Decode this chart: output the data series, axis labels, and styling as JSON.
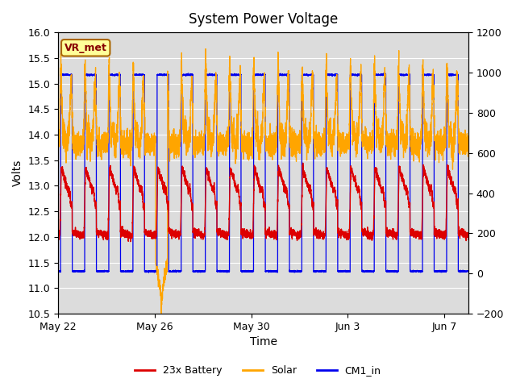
{
  "title": "System Power Voltage",
  "xlabel": "Time",
  "ylabel": "Volts",
  "ylim_left": [
    10.5,
    16.0
  ],
  "ylim_right": [
    -200,
    1200
  ],
  "yticks_left": [
    10.5,
    11.0,
    11.5,
    12.0,
    12.5,
    13.0,
    13.5,
    14.0,
    14.5,
    15.0,
    15.5,
    16.0
  ],
  "yticks_right": [
    -200,
    0,
    200,
    400,
    600,
    800,
    1000,
    1200
  ],
  "xtick_positions": [
    0,
    4,
    8,
    12,
    16
  ],
  "xtick_labels": [
    "May 22",
    "May 26",
    "May 30",
    "Jun 3",
    "Jun 7"
  ],
  "bg_color": "#dcdcdc",
  "line_colors": {
    "battery": "#dd0000",
    "solar": "#ffa500",
    "cm1": "#0000ee"
  },
  "legend_labels": [
    "23x Battery",
    "Solar",
    "CM1_in"
  ],
  "annotation_text": "VR_met",
  "annotation_color": "#880000",
  "annotation_bg": "#ffff99",
  "annotation_border": "#aa6600",
  "cm1_high": 15.17,
  "cm1_low": 11.33,
  "cm1_bottom_dip": 11.3,
  "battery_peak": 13.35,
  "battery_night": 12.05,
  "solar_day_base": 13.9,
  "solar_peak": 15.35,
  "solar_night": 13.85,
  "title_fontsize": 12,
  "axis_fontsize": 10,
  "tick_fontsize": 9,
  "xlim": [
    0,
    17
  ]
}
